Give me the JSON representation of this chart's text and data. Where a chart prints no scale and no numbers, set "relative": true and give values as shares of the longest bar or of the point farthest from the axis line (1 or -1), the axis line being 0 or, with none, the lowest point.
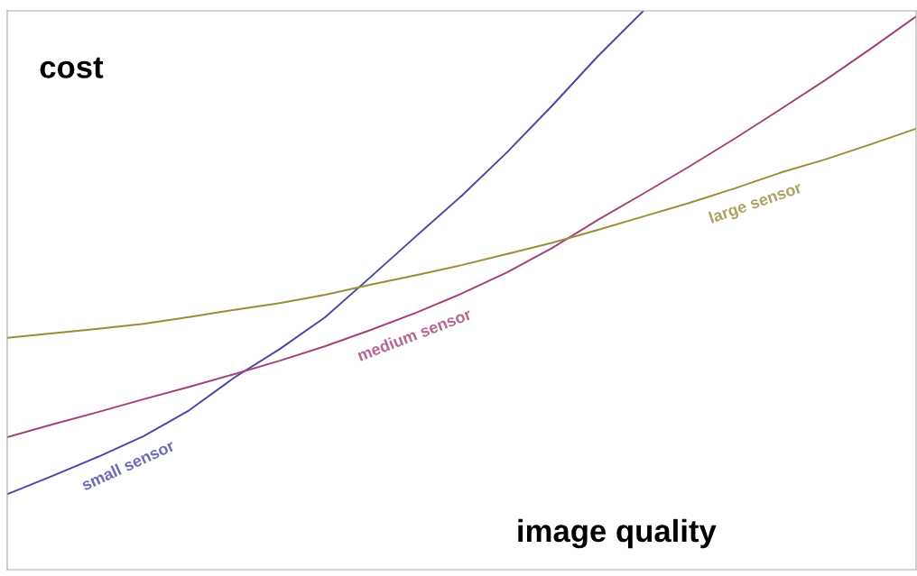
{
  "chart_data": {
    "type": "line",
    "relative": true,
    "xlabel": "image quality",
    "ylabel": "cost",
    "categories": [
      null,
      null,
      null,
      null,
      null,
      null,
      null,
      null,
      null,
      null,
      null,
      null,
      null,
      null,
      null,
      null,
      null,
      null,
      null,
      null,
      null
    ],
    "series": [
      {
        "name": "small sensor",
        "color": "#4a46a6",
        "values": [
          0.135,
          0.168,
          0.202,
          0.239,
          0.285,
          0.344,
          0.395,
          0.452,
          0.524,
          0.597,
          0.669,
          0.747,
          0.831,
          0.919,
          1.0,
          null,
          null,
          null,
          null,
          null,
          null
        ]
      },
      {
        "name": "medium sensor",
        "color": "#a3407a",
        "values": [
          0.237,
          0.26,
          0.282,
          0.305,
          0.327,
          0.35,
          0.374,
          0.4,
          0.429,
          0.46,
          0.494,
          0.532,
          0.576,
          0.626,
          0.673,
          0.721,
          0.771,
          0.823,
          0.876,
          0.932,
          0.99
        ]
      },
      {
        "name": "large sensor",
        "color": "#9a8c3a",
        "values": [
          0.415,
          0.423,
          0.431,
          0.44,
          0.452,
          0.465,
          0.477,
          0.492,
          0.51,
          0.527,
          0.545,
          0.565,
          0.585,
          0.608,
          0.632,
          0.656,
          0.682,
          0.71,
          0.734,
          0.761,
          0.789
        ]
      }
    ],
    "legend": false,
    "grid": false,
    "marker": "none",
    "line_style": "solid"
  }
}
